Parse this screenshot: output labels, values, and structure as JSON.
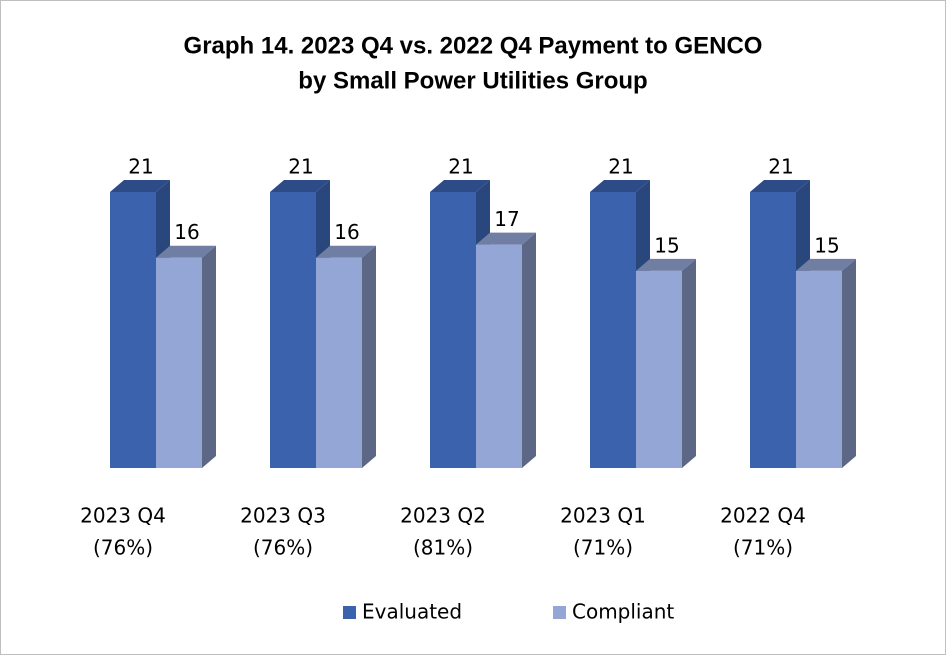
{
  "chart_data": {
    "type": "bar3d",
    "title": [
      "Graph 14. 2023 Q4 vs. 2022 Q4 Payment to GENCO",
      "by Small Power Utilities Group"
    ],
    "categories": [
      [
        "2023 Q4",
        "(76%)"
      ],
      [
        "2023 Q3",
        "(76%)"
      ],
      [
        "2023 Q2",
        "(81%)"
      ],
      [
        "2023 Q1",
        "(71%)"
      ],
      [
        "2022 Q4",
        "(71%)"
      ]
    ],
    "series": [
      {
        "name": "Evaluated",
        "color": "#3a62ad",
        "values": [
          21,
          21,
          21,
          21,
          21
        ]
      },
      {
        "name": "Compliant",
        "color": "#93a6d6",
        "values": [
          16,
          16,
          17,
          15,
          15
        ]
      }
    ],
    "legend": "bottom"
  }
}
